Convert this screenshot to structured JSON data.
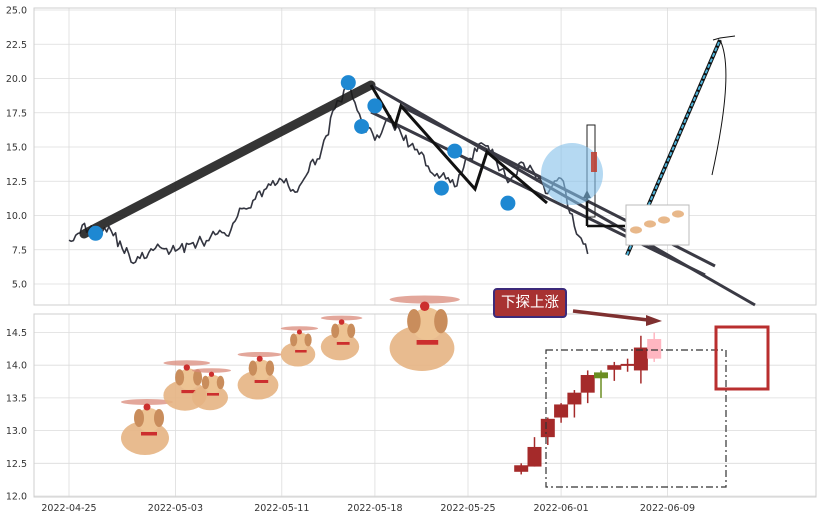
{
  "chart_data": [
    {
      "type": "line",
      "panel": "top",
      "title": "",
      "xlabel": "",
      "ylabel": "",
      "ylim": [
        3.5,
        25.8
      ],
      "yticks": [
        "5.0",
        "7.5",
        "10.0",
        "12.5",
        "15.0",
        "17.5",
        "20.0",
        "22.5",
        "25.0"
      ],
      "grid": true,
      "series": [
        {
          "x": [
            "2022-04-25",
            "2022-04-26",
            "2022-04-27",
            "2022-04-28",
            "2022-04-29",
            "2022-04-30",
            "2022-05-01",
            "2022-05-02",
            "2022-05-03",
            "2022-05-04",
            "2022-05-05",
            "2022-05-06",
            "2022-05-07",
            "2022-05-08",
            "2022-05-09",
            "2022-05-10",
            "2022-05-11",
            "2022-05-12",
            "2022-05-13",
            "2022-05-14",
            "2022-05-15",
            "2022-05-16",
            "2022-05-17",
            "2022-05-18",
            "2022-05-19",
            "2022-05-20",
            "2022-05-21",
            "2022-05-22",
            "2022-05-23",
            "2022-05-24",
            "2022-05-25",
            "2022-05-26",
            "2022-05-27",
            "2022-05-28",
            "2022-05-29",
            "2022-05-30",
            "2022-05-31",
            "2022-06-01",
            "2022-06-02",
            "2022-06-03"
          ],
          "values": [
            8.2,
            9.3,
            8.8,
            9.2,
            7.6,
            6.6,
            7.3,
            7.6,
            7.4,
            7.9,
            8.1,
            8.6,
            8.5,
            10.5,
            11.2,
            12.3,
            12.6,
            11.7,
            13.2,
            14.8,
            17.8,
            19.4,
            16.9,
            15.5,
            17.1,
            15.9,
            14.8,
            13.6,
            12.9,
            12.1,
            14.1,
            15.3,
            14.3,
            12.4,
            13.9,
            13.1,
            11.6,
            12.7,
            9.2,
            7.2
          ]
        }
      ],
      "pivots": [
        {
          "x": "2022-04-27",
          "y": 8.7
        },
        {
          "x": "2022-05-16",
          "y": 19.7
        },
        {
          "x": "2022-05-17",
          "y": 16.5
        },
        {
          "x": "2022-05-18",
          "y": 18.0
        },
        {
          "x": "2022-05-23",
          "y": 12.0
        },
        {
          "x": "2022-05-24",
          "y": 14.7
        },
        {
          "x": "2022-05-28",
          "y": 10.9
        }
      ]
    },
    {
      "type": "candlestick",
      "panel": "bottom",
      "title": "",
      "xlabel": "",
      "ylabel": "",
      "ylim": [
        12.0,
        14.8
      ],
      "yticks": [
        "12.0",
        "12.5",
        "13.0",
        "13.5",
        "14.0",
        "14.5"
      ],
      "grid": true,
      "candles": [
        {
          "x": "2022-05-29",
          "open": 12.37,
          "close": 12.47,
          "high": 12.5,
          "low": 12.33
        },
        {
          "x": "2022-05-30",
          "open": 12.45,
          "close": 12.75,
          "high": 12.9,
          "low": 12.45
        },
        {
          "x": "2022-05-31",
          "open": 12.9,
          "close": 13.18,
          "high": 13.2,
          "low": 12.78
        },
        {
          "x": "2022-06-01",
          "open": 13.2,
          "close": 13.4,
          "high": 13.42,
          "low": 13.12
        },
        {
          "x": "2022-06-02",
          "open": 13.4,
          "close": 13.58,
          "high": 13.62,
          "low": 13.2
        },
        {
          "x": "2022-06-03",
          "open": 13.58,
          "close": 13.85,
          "high": 13.92,
          "low": 13.42
        },
        {
          "x": "2022-06-04",
          "open": 13.89,
          "close": 13.8,
          "high": 13.92,
          "low": 13.5
        },
        {
          "x": "2022-06-05",
          "open": 13.93,
          "close": 14.0,
          "high": 14.05,
          "low": 13.76
        },
        {
          "x": "2022-06-06",
          "open": 14.01,
          "close": 14.02,
          "high": 14.1,
          "low": 13.9
        },
        {
          "x": "2022-06-07",
          "open": 13.92,
          "close": 14.27,
          "high": 14.45,
          "low": 13.72
        },
        {
          "x": "2022-06-08",
          "open": 14.1,
          "close": 14.4,
          "high": 14.5,
          "low": 14.05
        }
      ]
    }
  ],
  "xticks": [
    "2022-04-25",
    "2022-05-03",
    "2022-05-11",
    "2022-05-18",
    "2022-05-25",
    "2022-06-01",
    "2022-06-09"
  ],
  "annotation_text": "下探上涨",
  "colors": {
    "price_line": "#333540",
    "trend_line": "#3a3a44",
    "pivot": "#1e88d2",
    "candle_up": "#a52a2a",
    "candle_down": "#6b8e23",
    "candle_last": "#ffb6c1",
    "forecast": "#4fb3d9",
    "arrow": "#7f3030",
    "highlight": "#b92f2f"
  }
}
